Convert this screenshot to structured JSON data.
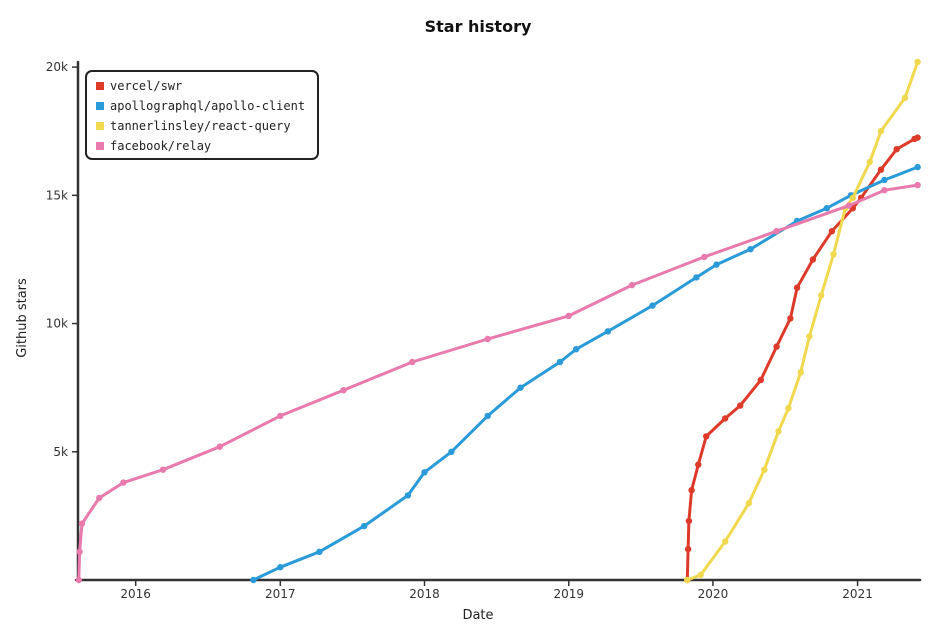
{
  "chart_data": {
    "type": "line",
    "title": "Star history",
    "xlabel": "Date",
    "ylabel": "Github stars",
    "x_ticks": [
      "2016",
      "2017",
      "2018",
      "2019",
      "2020",
      "2021"
    ],
    "y_ticks": [
      "5k",
      "10k",
      "15k",
      "20k"
    ],
    "legend_position": "top-left",
    "grid": false,
    "xlim": [
      "2015-08-08",
      "2021-06-08"
    ],
    "ylim": [
      0,
      20200
    ],
    "series": [
      {
        "name": "vercel/swr",
        "color": "#dd3a2a",
        "points": [
          [
            "2019-10-28",
            0
          ],
          [
            "2019-10-30",
            1200
          ],
          [
            "2019-11-01",
            2300
          ],
          [
            "2019-11-08",
            3500
          ],
          [
            "2019-11-25",
            4500
          ],
          [
            "2019-12-15",
            5600
          ],
          [
            "2020-02-01",
            6300
          ],
          [
            "2020-03-10",
            6800
          ],
          [
            "2020-05-01",
            7800
          ],
          [
            "2020-06-10",
            9100
          ],
          [
            "2020-07-15",
            10200
          ],
          [
            "2020-08-01",
            11400
          ],
          [
            "2020-09-10",
            12500
          ],
          [
            "2020-10-28",
            13600
          ],
          [
            "2020-12-20",
            14500
          ],
          [
            "2021-01-10",
            14900
          ],
          [
            "2021-03-01",
            16000
          ],
          [
            "2021-04-10",
            16800
          ],
          [
            "2021-05-25",
            17200
          ],
          [
            "2021-06-02",
            17250
          ]
        ]
      },
      {
        "name": "apollographql/apollo-client",
        "color": "#2a9bd8",
        "points": [
          [
            "2016-10-25",
            0
          ],
          [
            "2017-01-01",
            500
          ],
          [
            "2017-04-10",
            1100
          ],
          [
            "2017-08-01",
            2100
          ],
          [
            "2017-11-20",
            3300
          ],
          [
            "2018-01-01",
            4200
          ],
          [
            "2018-03-10",
            5000
          ],
          [
            "2018-06-10",
            6400
          ],
          [
            "2018-09-01",
            7500
          ],
          [
            "2018-12-10",
            8500
          ],
          [
            "2019-01-20",
            9000
          ],
          [
            "2019-04-10",
            9700
          ],
          [
            "2019-08-01",
            10700
          ],
          [
            "2019-11-20",
            11800
          ],
          [
            "2020-01-10",
            12300
          ],
          [
            "2020-04-05",
            12900
          ],
          [
            "2020-08-01",
            14000
          ],
          [
            "2020-10-15",
            14500
          ],
          [
            "2020-12-15",
            15000
          ],
          [
            "2021-03-10",
            15600
          ],
          [
            "2021-06-02",
            16100
          ]
        ]
      },
      {
        "name": "tannerlinsley/react-query",
        "color": "#f0d84f",
        "points": [
          [
            "2019-10-28",
            0
          ],
          [
            "2019-12-01",
            200
          ],
          [
            "2020-02-01",
            1500
          ],
          [
            "2020-04-01",
            3000
          ],
          [
            "2020-05-10",
            4300
          ],
          [
            "2020-06-15",
            5800
          ],
          [
            "2020-07-10",
            6700
          ],
          [
            "2020-08-10",
            8100
          ],
          [
            "2020-09-01",
            9500
          ],
          [
            "2020-10-01",
            11100
          ],
          [
            "2020-11-01",
            12700
          ],
          [
            "2020-12-01",
            14500
          ],
          [
            "2020-12-20",
            14900
          ],
          [
            "2021-02-01",
            16300
          ],
          [
            "2021-03-01",
            17500
          ],
          [
            "2021-05-01",
            18800
          ],
          [
            "2021-06-02",
            20200
          ]
        ]
      },
      {
        "name": "facebook/relay",
        "color": "#e87aac",
        "points": [
          [
            "2015-08-10",
            0
          ],
          [
            "2015-08-12",
            1100
          ],
          [
            "2015-08-18",
            2200
          ],
          [
            "2015-10-01",
            3200
          ],
          [
            "2015-12-01",
            3800
          ],
          [
            "2016-03-10",
            4300
          ],
          [
            "2016-08-01",
            5200
          ],
          [
            "2017-01-01",
            6400
          ],
          [
            "2017-06-10",
            7400
          ],
          [
            "2017-12-01",
            8500
          ],
          [
            "2018-06-10",
            9400
          ],
          [
            "2019-01-01",
            10300
          ],
          [
            "2019-06-10",
            11500
          ],
          [
            "2019-12-10",
            12600
          ],
          [
            "2020-06-10",
            13600
          ],
          [
            "2020-12-10",
            14600
          ],
          [
            "2021-03-10",
            15200
          ],
          [
            "2021-06-02",
            15400
          ]
        ]
      }
    ]
  }
}
